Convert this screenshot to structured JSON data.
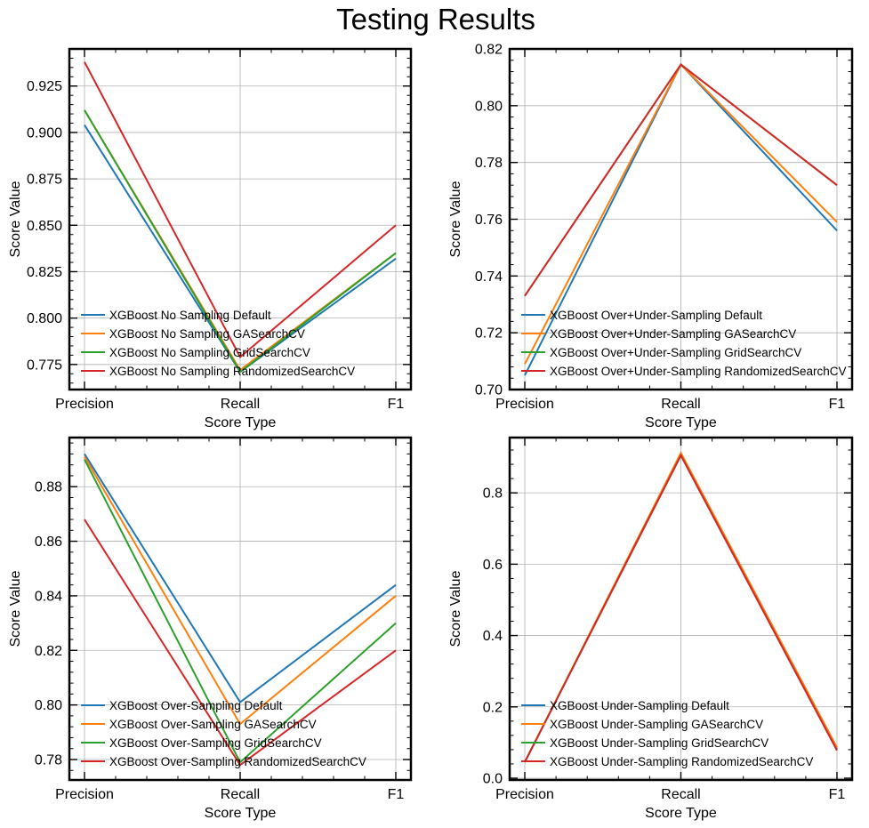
{
  "suptitle": "Testing Results",
  "chart_data": [
    {
      "type": "line",
      "categories": [
        "Precision",
        "Recall",
        "F1"
      ],
      "xlabel": "Score Type",
      "ylabel": "Score Value",
      "ylim": [
        0.7615,
        0.945
      ],
      "yticks": [
        0.775,
        0.8,
        0.825,
        0.85,
        0.875,
        0.9,
        0.925
      ],
      "ytick_labels": [
        "0.775",
        "0.800",
        "0.825",
        "0.850",
        "0.875",
        "0.900",
        "0.925"
      ],
      "grid": true,
      "legend_position": "lower-left",
      "series": [
        {
          "name": "XGBoost No Sampling Default",
          "color": "#1f77b4",
          "values": [
            0.904,
            0.771,
            0.832
          ]
        },
        {
          "name": "XGBoost No Sampling GASearchCV",
          "color": "#ff7f0e",
          "values": [
            0.912,
            0.772,
            0.835
          ]
        },
        {
          "name": "XGBoost No Sampling GridSearchCV",
          "color": "#2ca02c",
          "values": [
            0.912,
            0.771,
            0.835
          ]
        },
        {
          "name": "XGBoost No Sampling RandomizedSearchCV",
          "color": "#d62728",
          "values": [
            0.938,
            0.779,
            0.85
          ]
        }
      ]
    },
    {
      "type": "line",
      "categories": [
        "Precision",
        "Recall",
        "F1"
      ],
      "xlabel": "Score Type",
      "ylabel": "Score Value",
      "ylim": [
        0.7,
        0.82
      ],
      "yticks": [
        0.7,
        0.72,
        0.74,
        0.76,
        0.78,
        0.8,
        0.82
      ],
      "ytick_labels": [
        "0.70",
        "0.72",
        "0.74",
        "0.76",
        "0.78",
        "0.80",
        "0.82"
      ],
      "grid": true,
      "legend_position": "lower-left",
      "series": [
        {
          "name": "XGBoost Over+Under-Sampling Default",
          "color": "#1f77b4",
          "values": [
            0.705,
            0.8145,
            0.756
          ]
        },
        {
          "name": "XGBoost Over+Under-Sampling GASearchCV",
          "color": "#ff7f0e",
          "values": [
            0.709,
            0.8145,
            0.759
          ]
        },
        {
          "name": "XGBoost Over+Under-Sampling GridSearchCV",
          "color": "#2ca02c",
          "values": [
            0.733,
            0.8145,
            0.772
          ]
        },
        {
          "name": "XGBoost Over+Under-Sampling RandomizedSearchCV",
          "color": "#d62728",
          "values": [
            0.733,
            0.8145,
            0.772
          ]
        }
      ]
    },
    {
      "type": "line",
      "categories": [
        "Precision",
        "Recall",
        "F1"
      ],
      "xlabel": "Score Type",
      "ylabel": "Score Value",
      "ylim": [
        0.7725,
        0.898
      ],
      "yticks": [
        0.78,
        0.8,
        0.82,
        0.84,
        0.86,
        0.88
      ],
      "ytick_labels": [
        "0.78",
        "0.80",
        "0.82",
        "0.84",
        "0.86",
        "0.88"
      ],
      "grid": true,
      "legend_position": "lower-left",
      "series": [
        {
          "name": "XGBoost Over-Sampling Default",
          "color": "#1f77b4",
          "values": [
            0.892,
            0.801,
            0.844
          ]
        },
        {
          "name": "XGBoost Over-Sampling GASearchCV",
          "color": "#ff7f0e",
          "values": [
            0.891,
            0.793,
            0.84
          ]
        },
        {
          "name": "XGBoost Over-Sampling GridSearchCV",
          "color": "#2ca02c",
          "values": [
            0.89,
            0.779,
            0.83
          ]
        },
        {
          "name": "XGBoost Over-Sampling RandomizedSearchCV",
          "color": "#d62728",
          "values": [
            0.868,
            0.778,
            0.82
          ]
        }
      ]
    },
    {
      "type": "line",
      "categories": [
        "Precision",
        "Recall",
        "F1"
      ],
      "xlabel": "Score Type",
      "ylabel": "Score Value",
      "ylim": [
        -0.005,
        0.955
      ],
      "yticks": [
        0.0,
        0.2,
        0.4,
        0.6,
        0.8
      ],
      "ytick_labels": [
        "0.0",
        "0.2",
        "0.4",
        "0.6",
        "0.8"
      ],
      "grid": true,
      "legend_position": "lower-left",
      "series": [
        {
          "name": "XGBoost Under-Sampling Default",
          "color": "#1f77b4",
          "values": [
            0.045,
            0.908,
            0.082
          ]
        },
        {
          "name": "XGBoost Under-Sampling GASearchCV",
          "color": "#ff7f0e",
          "values": [
            0.045,
            0.912,
            0.086
          ]
        },
        {
          "name": "XGBoost Under-Sampling GridSearchCV",
          "color": "#2ca02c",
          "values": [
            0.045,
            0.905,
            0.078
          ]
        },
        {
          "name": "XGBoost Under-Sampling RandomizedSearchCV",
          "color": "#d62728",
          "values": [
            0.045,
            0.905,
            0.078
          ]
        }
      ]
    }
  ]
}
